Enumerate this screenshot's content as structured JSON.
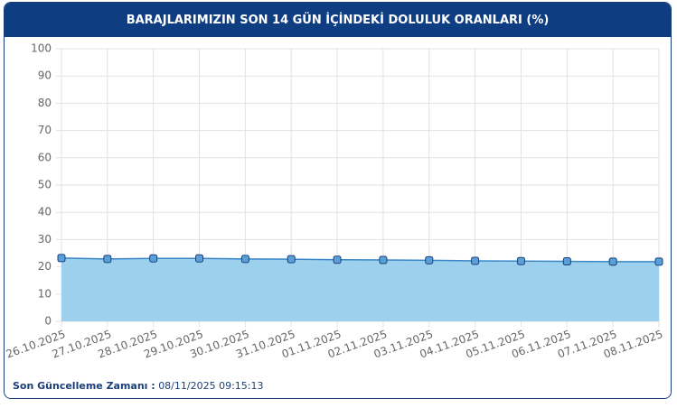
{
  "chart_data": {
    "type": "line",
    "title": "BARAJLARIMIZIN SON 14 GÜN İÇİNDEKİ DOLULUK ORANLARI (%)",
    "categories": [
      "26.10.2025",
      "27.10.2025",
      "28.10.2025",
      "29.10.2025",
      "30.10.2025",
      "31.10.2025",
      "01.11.2025",
      "02.11.2025",
      "03.11.2025",
      "04.11.2025",
      "05.11.2025",
      "06.11.2025",
      "07.11.2025",
      "08.11.2025"
    ],
    "values": [
      23.2,
      22.9,
      23.1,
      23.1,
      22.9,
      22.8,
      22.6,
      22.5,
      22.4,
      22.2,
      22.1,
      22.0,
      21.9,
      21.9
    ],
    "color": "#3a87c8",
    "area_color": "#9dd0ec",
    "marker_color": "#5aa0d8",
    "ylim": [
      0,
      100
    ],
    "yticks": [
      0,
      10,
      20,
      30,
      40,
      50,
      60,
      70,
      80,
      90,
      100
    ],
    "grid": true,
    "area": true
  },
  "footer": {
    "label": "Son Güncelleme Zamanı :",
    "value": "08/11/2025 09:15:13"
  }
}
